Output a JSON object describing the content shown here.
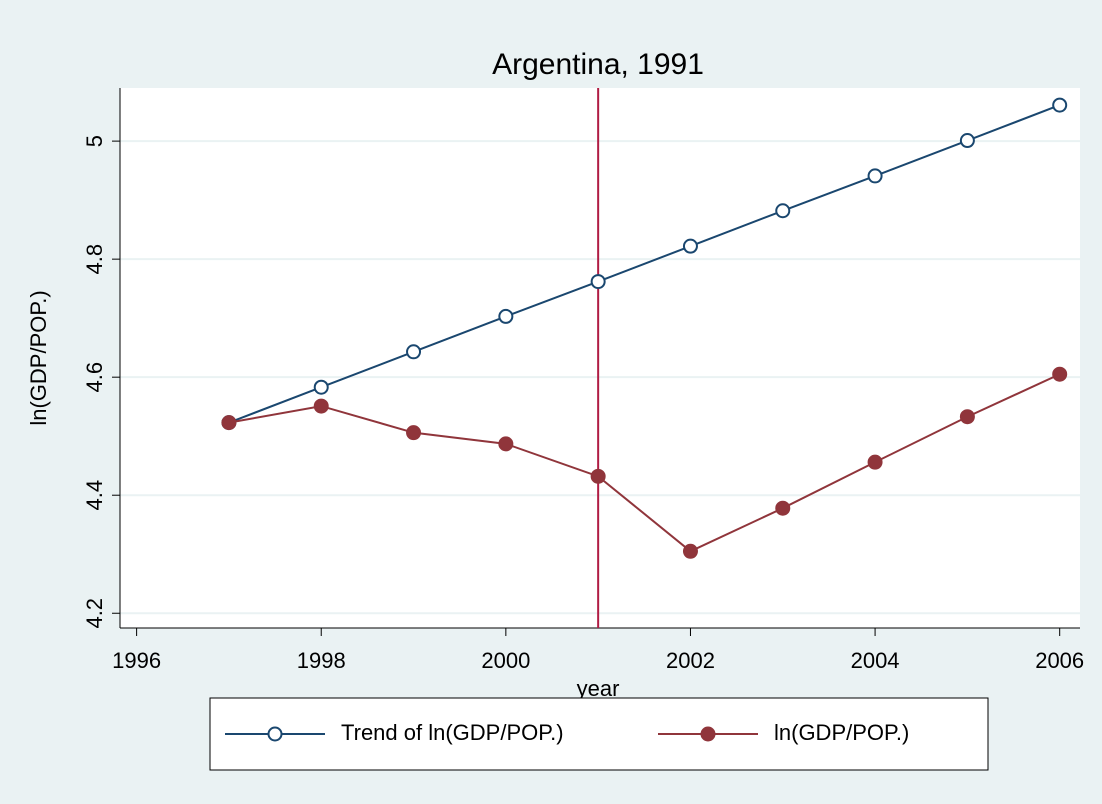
{
  "chart_data": {
    "type": "line",
    "title": "Argentina, 1991",
    "x_label": "year",
    "y_label": "ln(GDP/POP.)",
    "x": [
      1997,
      1998,
      1999,
      2000,
      2001,
      2002,
      2003,
      2004,
      2005,
      2006
    ],
    "series": [
      {
        "name": "Trend of ln(GDP/POP.)",
        "color": "#1a476f",
        "marker": "hollow-circle",
        "values": [
          4.523,
          4.583,
          4.643,
          4.703,
          4.762,
          4.822,
          4.882,
          4.941,
          5.001,
          5.061
        ]
      },
      {
        "name": "ln(GDP/POP.)",
        "color": "#90353b",
        "marker": "filled-circle",
        "values": [
          4.523,
          4.551,
          4.506,
          4.487,
          4.432,
          4.305,
          4.378,
          4.456,
          4.533,
          4.605
        ]
      }
    ],
    "xline": 2001,
    "xline_color": "#b01c44",
    "xlim": [
      1995.82,
      2006.22
    ],
    "xticks": [
      1996,
      1998,
      2000,
      2002,
      2004,
      2006
    ],
    "ylim": [
      4.175,
      5.09
    ],
    "yticks": [
      4.2,
      4.4,
      4.6,
      4.8,
      5
    ],
    "grid": true,
    "legend": "bottom"
  }
}
